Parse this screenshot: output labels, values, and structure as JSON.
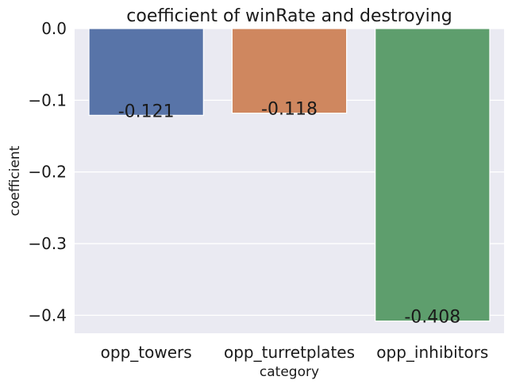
{
  "chart_data": {
    "type": "bar",
    "title": "coefficient of winRate and destroying",
    "xlabel": "category",
    "ylabel": "coefficient",
    "categories": [
      "opp_towers",
      "opp_turretplates",
      "opp_inhibitors"
    ],
    "values": [
      -0.121,
      -0.118,
      -0.408
    ],
    "data_labels": [
      "-0.121",
      "-0.118",
      "-0.408"
    ],
    "colors": [
      "#5874a8",
      "#cf875f",
      "#5e9e6d"
    ],
    "ylim": [
      -0.425,
      0.0
    ],
    "yticks": [
      0.0,
      -0.1,
      -0.2,
      -0.3,
      -0.4
    ],
    "ytick_labels": [
      "0.0",
      "−0.1",
      "−0.2",
      "−0.3",
      "−0.4"
    ],
    "grid": true,
    "background": "#eaeaf2"
  }
}
